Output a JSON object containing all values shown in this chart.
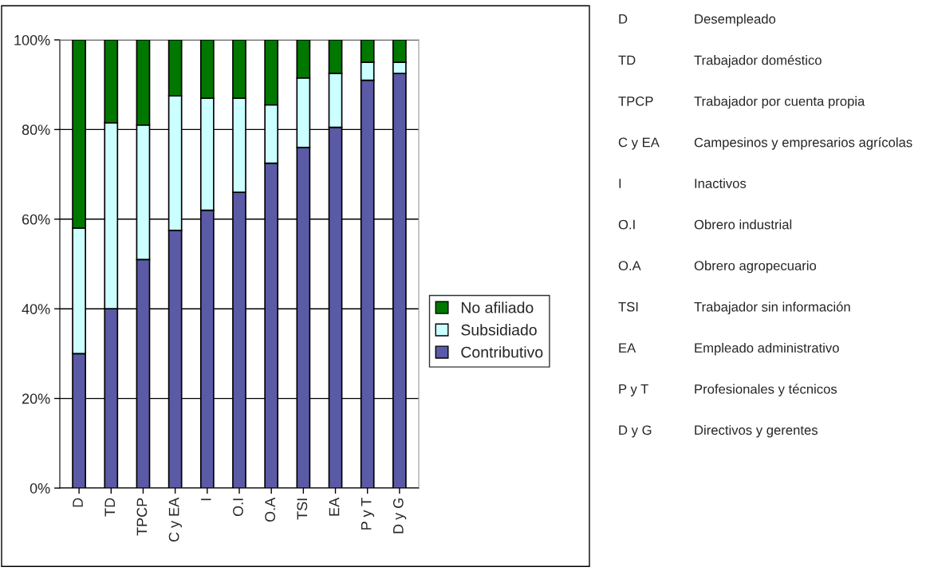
{
  "chart_data": {
    "type": "bar",
    "stacked": true,
    "categories": [
      "D",
      "TD",
      "TPCP",
      "C y EA",
      "I",
      "O.I",
      "O.A",
      "TSI",
      "EA",
      "P y T",
      "D y G"
    ],
    "series": [
      {
        "name": "Contributivo",
        "color": "#5a5aa6",
        "values": [
          30,
          40,
          51,
          57.5,
          62,
          66,
          72.5,
          76,
          80.5,
          91,
          92.5
        ]
      },
      {
        "name": "Subsidiado",
        "color": "#ccffff",
        "values": [
          28,
          41.5,
          30,
          30,
          25,
          21,
          13,
          15.5,
          12,
          4,
          2.5
        ]
      },
      {
        "name": "No afiliado",
        "color": "#007800",
        "values": [
          42,
          18.5,
          19,
          12.5,
          13,
          13,
          14.5,
          8.5,
          7.5,
          5,
          5
        ]
      }
    ],
    "ylim": [
      0,
      100
    ],
    "yticks": [
      {
        "value": 0,
        "label": "0%"
      },
      {
        "value": 20,
        "label": "20%"
      },
      {
        "value": 40,
        "label": "40%"
      },
      {
        "value": 60,
        "label": "60%"
      },
      {
        "value": 80,
        "label": "80%"
      },
      {
        "value": 100,
        "label": "100%"
      }
    ],
    "grid": "y",
    "legend": "right",
    "annotations": [
      "D",
      "Desempleado",
      "TD",
      "Trabajador doméstico",
      "TPCP",
      "Trabajador por cuenta propia",
      "C y EA",
      "Campesinos y empresarios agrícolas",
      "I",
      "Inactivos",
      "O.I",
      "Obrero industrial",
      "O.A",
      "Obrero agropecuario",
      "TSI",
      "Trabajador sin información",
      "EA",
      "Empleado administrativo",
      "P y T",
      "Profesionales y técnicos",
      "D y G",
      "Directivos y gerentes"
    ]
  }
}
